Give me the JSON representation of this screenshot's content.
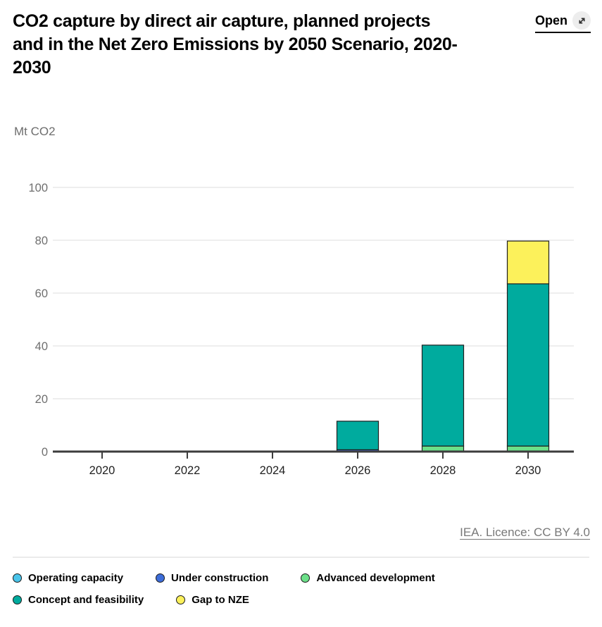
{
  "header": {
    "open_label": "Open"
  },
  "chart_data": {
    "type": "bar",
    "stacked": true,
    "title": "CO2 capture by direct air capture, planned projects and in the Net Zero Emissions by 2050 Scenario, 2020-2030",
    "ylabel": "Mt CO2",
    "xlabel": "",
    "ylim": [
      0,
      100
    ],
    "y_ticks": [
      0,
      20,
      40,
      60,
      80,
      100
    ],
    "x_ticks": [
      2020,
      2022,
      2024,
      2026,
      2028,
      2030
    ],
    "grid": true,
    "legend_position": "bottom",
    "categories": [
      2026,
      2028,
      2030
    ],
    "series": [
      {
        "name": "Operating capacity",
        "color": "#4ac4ea",
        "values": [
          0,
          0,
          0
        ]
      },
      {
        "name": "Under construction",
        "color": "#3d6dd9",
        "values": [
          0.7,
          0,
          0
        ]
      },
      {
        "name": "Advanced development",
        "color": "#6ce089",
        "values": [
          0,
          2.1,
          2.1
        ]
      },
      {
        "name": "Concept and feasibility",
        "color": "#00ab9e",
        "values": [
          10.8,
          38.2,
          61.4
        ]
      },
      {
        "name": "Gap to NZE",
        "color": "#fcf15b",
        "values": [
          0,
          0,
          16.2
        ]
      }
    ],
    "totals": {
      "2026": 11.5,
      "2028": 40.3,
      "2030": 79.7
    }
  },
  "footer": {
    "source": "IEA. Licence: CC BY 4.0"
  },
  "style_colors": {
    "gridline": "#e9e9e9",
    "axis_baseline": "#3d3d3d",
    "bar_outline": "#1f1f1f",
    "y_tick_label": "#6f6f6f",
    "x_tick_label": "#1f1f1f"
  }
}
